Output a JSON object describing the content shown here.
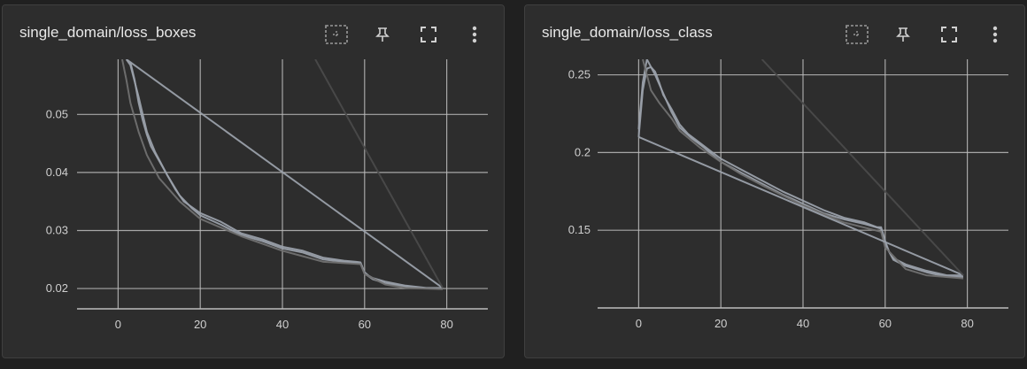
{
  "icons": [
    "fit-to-data-icon",
    "pin-icon",
    "fullscreen-icon",
    "more-vert-icon"
  ],
  "colors": {
    "background": "#202020",
    "card": "#2d2d2d",
    "grid": "#bdbdbd",
    "series_light": "#9aa0aa",
    "series_dark": "#555555"
  },
  "chart_data": [
    {
      "type": "line",
      "title": "single_domain/loss_boxes",
      "xlim": [
        -10,
        90
      ],
      "ylim": [
        0.0165,
        0.0595
      ],
      "x_ticks": [
        "0",
        "20",
        "40",
        "60",
        "80"
      ],
      "y_ticks": [
        "0.02",
        "0.03",
        "0.04",
        "0.05"
      ],
      "y_tick_values": [
        0.02,
        0.03,
        0.04,
        0.05
      ],
      "x_tick_values": [
        0,
        20,
        40,
        60,
        80
      ],
      "grid": true,
      "series": [
        {
          "color": "#9aa0aa",
          "x": [
            2,
            3,
            4,
            5,
            6,
            7,
            8,
            10,
            12,
            14,
            16,
            18,
            20,
            25,
            30,
            35,
            40,
            45,
            50,
            55,
            58,
            59,
            60,
            61,
            62,
            65,
            70,
            75,
            79
          ],
          "y": [
            0.0595,
            0.059,
            0.056,
            0.052,
            0.049,
            0.0465,
            0.0445,
            0.042,
            0.0395,
            0.037,
            0.035,
            0.034,
            0.033,
            0.0315,
            0.0295,
            0.0285,
            0.0272,
            0.0265,
            0.0253,
            0.0248,
            0.0246,
            0.0245,
            0.0228,
            0.0222,
            0.0218,
            0.0212,
            0.0205,
            0.0201,
            0.0201
          ]
        },
        {
          "color": "#9aa0aa",
          "x": [
            2,
            3,
            5,
            7,
            9,
            12,
            15,
            18,
            20,
            25,
            30,
            35,
            40,
            45,
            50,
            55,
            59,
            60,
            62,
            65,
            70,
            75,
            79
          ],
          "y": [
            0.0595,
            0.0585,
            0.053,
            0.047,
            0.0435,
            0.0395,
            0.036,
            0.0338,
            0.0326,
            0.031,
            0.0292,
            0.0282,
            0.0269,
            0.0262,
            0.025,
            0.0246,
            0.0243,
            0.0226,
            0.0216,
            0.0209,
            0.0203,
            0.02,
            0.02
          ]
        },
        {
          "color": "#707070",
          "x": [
            1,
            2,
            3,
            5,
            7,
            10,
            15,
            20,
            25,
            30,
            40,
            50,
            59,
            60,
            65,
            70,
            79
          ],
          "y": [
            0.0595,
            0.056,
            0.052,
            0.047,
            0.043,
            0.039,
            0.035,
            0.032,
            0.0305,
            0.029,
            0.0265,
            0.0246,
            0.0242,
            0.0225,
            0.0207,
            0.0201,
            0.0199
          ]
        },
        {
          "color": "#9aa0aa",
          "x": [
            3,
            79
          ],
          "y": [
            0.059,
            0.0201
          ]
        },
        {
          "color": "#4a4a4a",
          "x": [
            48,
            79
          ],
          "y": [
            0.0595,
            0.0201
          ]
        }
      ]
    },
    {
      "type": "line",
      "title": "single_domain/loss_class",
      "xlim": [
        -10,
        90
      ],
      "ylim": [
        0.1,
        0.26
      ],
      "x_ticks": [
        "0",
        "20",
        "40",
        "60",
        "80"
      ],
      "y_ticks": [
        "0.15",
        "0.2",
        "0.25"
      ],
      "y_tick_values": [
        0.15,
        0.2,
        0.25
      ],
      "x_tick_values": [
        0,
        20,
        40,
        60,
        80
      ],
      "grid": true,
      "series": [
        {
          "color": "#9aa0aa",
          "x": [
            0,
            1,
            2,
            3,
            4,
            5,
            6,
            8,
            10,
            12,
            15,
            18,
            20,
            25,
            30,
            35,
            40,
            45,
            50,
            55,
            58,
            59,
            60,
            61,
            62,
            65,
            70,
            75,
            79
          ],
          "y": [
            0.21,
            0.24,
            0.254,
            0.255,
            0.252,
            0.245,
            0.237,
            0.228,
            0.218,
            0.212,
            0.206,
            0.2,
            0.196,
            0.189,
            0.182,
            0.175,
            0.169,
            0.163,
            0.158,
            0.155,
            0.152,
            0.152,
            0.143,
            0.136,
            0.132,
            0.128,
            0.124,
            0.121,
            0.121
          ]
        },
        {
          "color": "#9aa0aa",
          "x": [
            0,
            1,
            2,
            4,
            6,
            8,
            10,
            13,
            16,
            20,
            25,
            30,
            35,
            40,
            45,
            50,
            55,
            59,
            60,
            62,
            65,
            70,
            75,
            79
          ],
          "y": [
            0.215,
            0.245,
            0.26,
            0.25,
            0.238,
            0.226,
            0.216,
            0.209,
            0.203,
            0.194,
            0.187,
            0.18,
            0.173,
            0.167,
            0.161,
            0.157,
            0.154,
            0.151,
            0.141,
            0.131,
            0.127,
            0.123,
            0.12,
            0.12
          ]
        },
        {
          "color": "#707070",
          "x": [
            1,
            3,
            5,
            8,
            10,
            15,
            20,
            25,
            30,
            40,
            50,
            59,
            60,
            65,
            70,
            79
          ],
          "y": [
            0.26,
            0.24,
            0.232,
            0.222,
            0.214,
            0.203,
            0.194,
            0.186,
            0.179,
            0.166,
            0.155,
            0.149,
            0.139,
            0.125,
            0.121,
            0.119
          ]
        },
        {
          "color": "#9aa0aa",
          "x": [
            0,
            79
          ],
          "y": [
            0.21,
            0.121
          ]
        },
        {
          "color": "#4a4a4a",
          "x": [
            30,
            79
          ],
          "y": [
            0.26,
            0.121
          ]
        }
      ]
    }
  ]
}
